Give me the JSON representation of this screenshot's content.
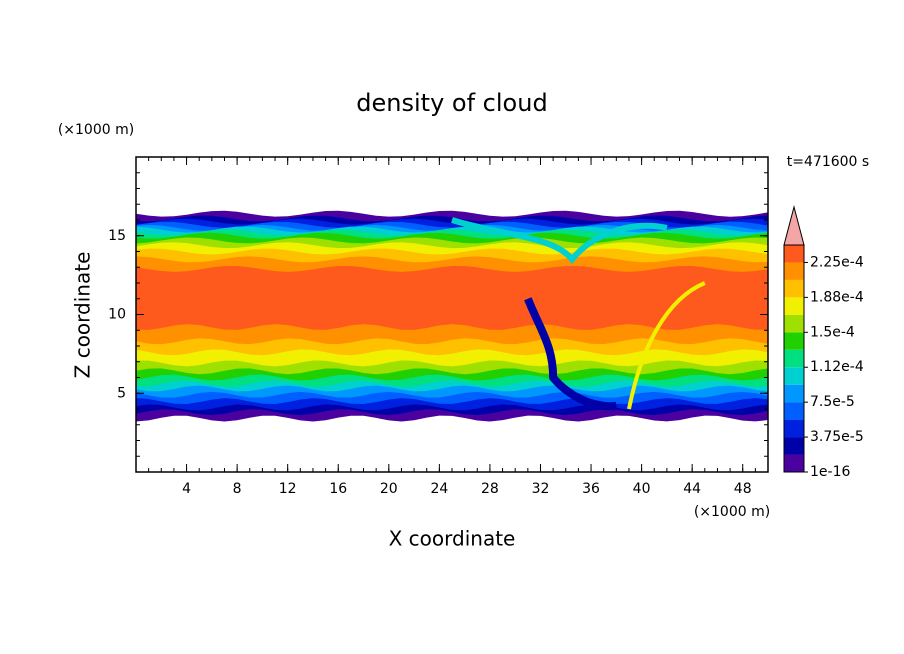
{
  "chart_data": {
    "type": "contour",
    "title": "density of cloud",
    "x_label": "X coordinate",
    "y_label": "Z coordinate",
    "x_unit": "(×1000 m)",
    "y_unit": "(×1000 m)",
    "time_label": "t=471600 s",
    "xlim": [
      0,
      50
    ],
    "ylim": [
      0,
      20
    ],
    "xticks": [
      4,
      8,
      12,
      16,
      20,
      24,
      28,
      32,
      36,
      40,
      44,
      48
    ],
    "yticks": [
      5,
      10,
      15
    ],
    "clim": [
      1e-16,
      0.00024375
    ],
    "colors": [
      "#4b00a0",
      "#0000a8",
      "#0020e0",
      "#0060ff",
      "#0098ff",
      "#00d0d0",
      "#00e080",
      "#20d000",
      "#a0e000",
      "#f0f000",
      "#ffc000",
      "#ff9000",
      "#ff5a1e"
    ],
    "extend_color": "#f4a6a6",
    "colorbar_ticks": [
      {
        "value": 1e-16,
        "label": "1e-16"
      },
      {
        "value": 3.75e-05,
        "label": "3.75e-5"
      },
      {
        "value": 7.5e-05,
        "label": "7.5e-5"
      },
      {
        "value": 0.0001125,
        "label": "1.12e-4"
      },
      {
        "value": 0.00015,
        "label": "1.5e-4"
      },
      {
        "value": 0.0001875,
        "label": "1.88e-4"
      },
      {
        "value": 0.000225,
        "label": "2.25e-4"
      }
    ]
  }
}
